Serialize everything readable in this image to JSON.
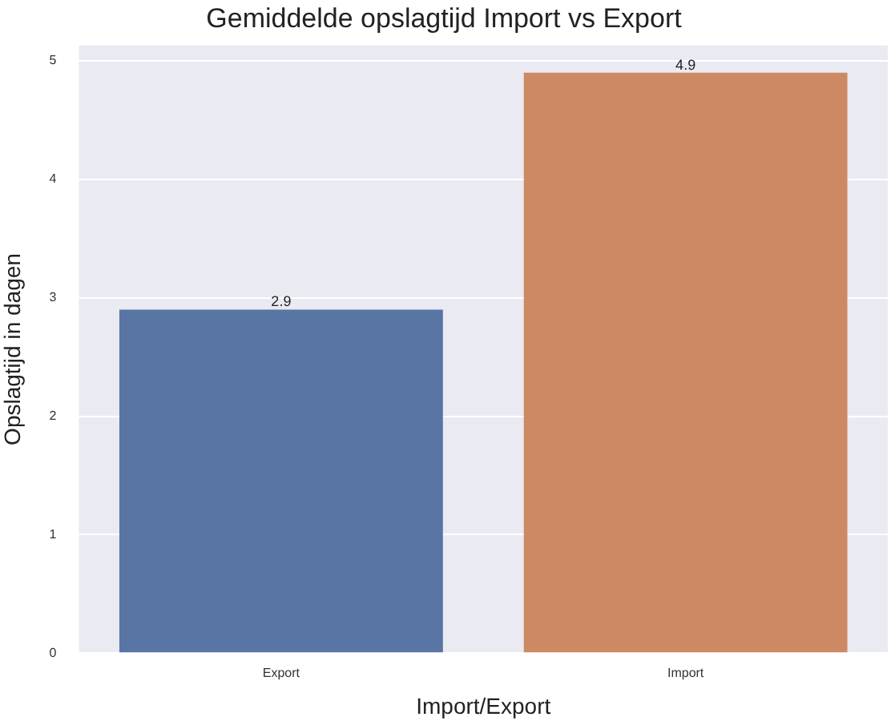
{
  "chart_data": {
    "type": "bar",
    "title": "Gemiddelde opslagtijd Import vs Export",
    "xlabel": "Import/Export",
    "ylabel": "Opslagtijd in dagen",
    "categories": [
      "Export",
      "Import"
    ],
    "values": [
      2.9,
      4.9
    ],
    "colors": [
      "#5875a4",
      "#cc8963"
    ],
    "ylim": [
      0,
      5.13
    ],
    "yticks": [
      0,
      1,
      2,
      3,
      4,
      5
    ],
    "grid": "y",
    "data_labels": true,
    "legend": false
  }
}
